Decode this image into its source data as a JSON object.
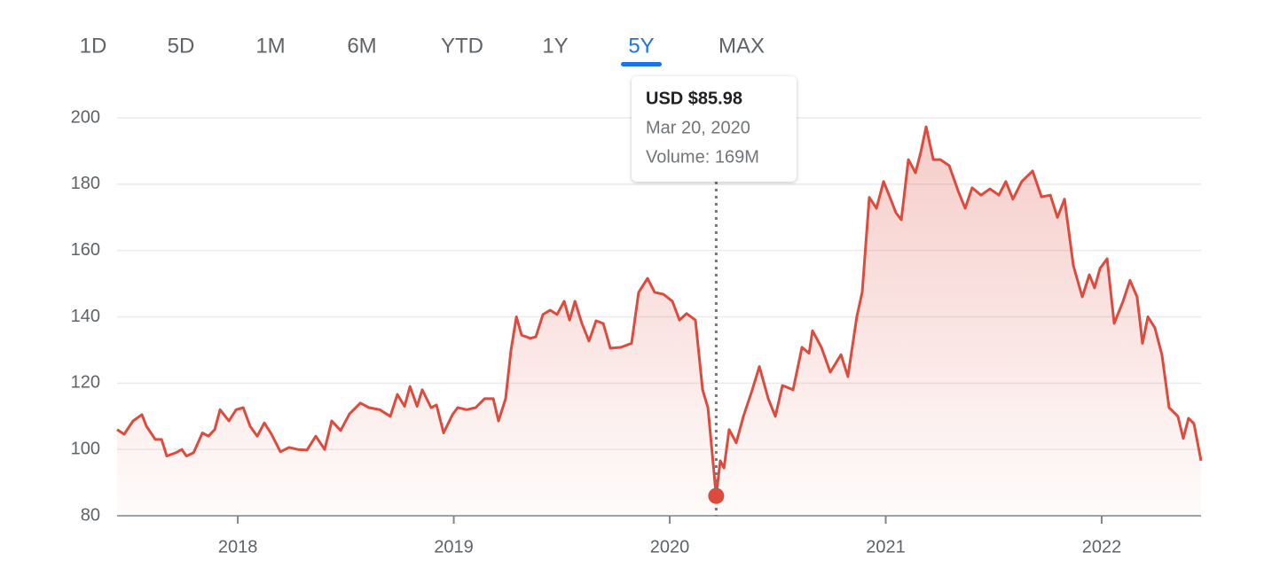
{
  "tabs": {
    "items": [
      "1D",
      "5D",
      "1M",
      "6M",
      "YTD",
      "1Y",
      "5Y",
      "MAX"
    ],
    "active": 6
  },
  "chart_data": {
    "type": "line",
    "x": [
      2017.441,
      2017.474,
      2017.515,
      2017.556,
      2017.577,
      2017.618,
      2017.647,
      2017.671,
      2017.713,
      2017.741,
      2017.762,
      2017.795,
      2017.836,
      2017.864,
      2017.893,
      2017.918,
      2017.959,
      2017.992,
      2018.025,
      2018.057,
      2018.09,
      2018.123,
      2018.156,
      2018.197,
      2018.238,
      2018.279,
      2018.32,
      2018.361,
      2018.402,
      2018.435,
      2018.476,
      2018.517,
      2018.567,
      2018.608,
      2018.657,
      2018.706,
      2018.739,
      2018.772,
      2018.797,
      2018.83,
      2018.854,
      2018.895,
      2018.92,
      2018.953,
      2018.994,
      2019.018,
      2019.06,
      2019.101,
      2019.142,
      2019.183,
      2019.207,
      2019.24,
      2019.265,
      2019.29,
      2019.314,
      2019.355,
      2019.38,
      2019.413,
      2019.446,
      2019.478,
      2019.511,
      2019.536,
      2019.561,
      2019.593,
      2019.626,
      2019.659,
      2019.692,
      2019.725,
      2019.774,
      2019.823,
      2019.856,
      2019.897,
      2019.93,
      2019.971,
      2020.012,
      2020.045,
      2020.078,
      2020.119,
      2020.152,
      2020.177,
      2020.215,
      2020.234,
      2020.251,
      2020.275,
      2020.308,
      2020.341,
      2020.382,
      2020.415,
      2020.456,
      2020.489,
      2020.522,
      2020.571,
      2020.612,
      2020.645,
      2020.661,
      2020.702,
      2020.743,
      2020.793,
      2020.825,
      2020.866,
      2020.891,
      2020.924,
      2020.957,
      2020.99,
      2021.023,
      2021.047,
      2021.072,
      2021.105,
      2021.138,
      2021.162,
      2021.187,
      2021.22,
      2021.253,
      2021.294,
      2021.335,
      2021.368,
      2021.4,
      2021.441,
      2021.483,
      2021.524,
      2021.556,
      2021.589,
      2021.63,
      2021.68,
      2021.721,
      2021.762,
      2021.795,
      2021.828,
      2021.869,
      2021.91,
      2021.943,
      2021.967,
      2021.992,
      2022.025,
      2022.058,
      2022.099,
      2022.131,
      2022.164,
      2022.189,
      2022.214,
      2022.246,
      2022.279,
      2022.312,
      2022.353,
      2022.378,
      2022.402,
      2022.427,
      2022.46
    ],
    "series": [
      {
        "color": "#dc4b3e",
        "values": [
          106,
          104.6,
          108.6,
          110.5,
          107,
          103,
          103,
          98,
          99,
          100,
          98,
          99,
          105,
          104,
          106,
          112,
          108.6,
          112,
          112.6,
          107,
          104,
          108,
          104.6,
          99.3,
          100.6,
          100,
          99.8,
          104,
          100,
          108.6,
          105.7,
          110.7,
          114,
          112.6,
          112,
          110,
          116.6,
          113,
          119,
          113,
          118,
          112.6,
          113.4,
          105,
          110.5,
          112.6,
          112,
          112.6,
          115.3,
          115.3,
          108.6,
          115.3,
          130,
          140,
          134.5,
          133.5,
          134,
          140.7,
          142,
          140.7,
          144.7,
          139,
          144.7,
          138,
          132.7,
          138.8,
          138,
          130.5,
          130.8,
          132,
          147.4,
          151.6,
          147.4,
          146.8,
          144.7,
          139,
          141,
          139,
          118,
          112.6,
          85.98,
          96.6,
          94.4,
          106,
          102,
          110,
          118,
          125,
          115.3,
          110,
          119.3,
          118,
          130.8,
          129,
          135.8,
          130.8,
          123.3,
          128.6,
          122,
          140,
          147.4,
          176,
          172.7,
          180.8,
          175.5,
          171.4,
          169.3,
          187.4,
          183.4,
          189.6,
          197.3,
          187.4,
          187.4,
          185.6,
          178,
          172.7,
          178.9,
          176.7,
          178.6,
          176.7,
          180.8,
          175.5,
          180.8,
          184,
          176.2,
          176.7,
          170,
          175.5,
          155.4,
          146,
          152.7,
          148.7,
          154.6,
          157.5,
          138,
          144.7,
          151,
          146,
          132,
          140,
          136.7,
          128.6,
          112.6,
          110,
          103.3,
          109.4,
          107.8,
          96.6
        ]
      }
    ],
    "xlim": [
      2017.441,
      2022.46
    ],
    "xticks": [
      2018,
      2019,
      2020,
      2021,
      2022
    ],
    "ylim": [
      80,
      200
    ],
    "yticks": [
      80,
      100,
      120,
      140,
      160,
      180,
      200
    ],
    "grid": true,
    "highlight": 80,
    "tooltip": {
      "price": "USD $85.98",
      "date": "Mar 20, 2020",
      "volume": "Volume: 169M"
    }
  }
}
